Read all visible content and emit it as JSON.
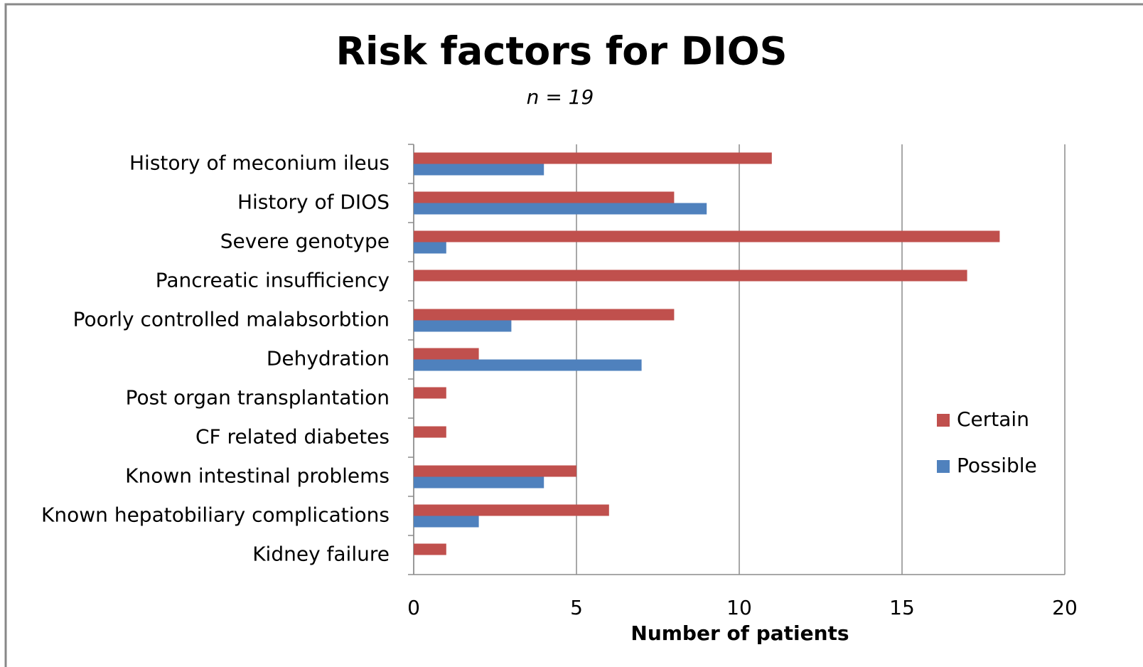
{
  "chart_data": {
    "type": "bar",
    "orientation": "horizontal",
    "title": "Risk factors for DIOS",
    "subtitle": "n = 19",
    "x_label": "Number of patients",
    "categories": [
      "History of meconium ileus",
      "History of DIOS",
      "Severe genotype",
      "Pancreatic insufficiency",
      "Poorly controlled malabsorbtion",
      "Dehydration",
      "Post organ transplantation",
      "CF related diabetes",
      "Known intestinal problems",
      "Known hepatobiliary complications",
      "Kidney failure"
    ],
    "series": [
      {
        "name": "Certain",
        "color": "#c0504d",
        "values": [
          11,
          8,
          18,
          17,
          8,
          2,
          1,
          1,
          5,
          6,
          1
        ]
      },
      {
        "name": "Possible",
        "color": "#4f81bd",
        "values": [
          4,
          9,
          1,
          0,
          3,
          7,
          0,
          0,
          4,
          2,
          0
        ]
      }
    ],
    "xlim": [
      0,
      20
    ],
    "xticks": [
      0,
      5,
      10,
      15,
      20
    ],
    "grid": true,
    "legend": "right"
  }
}
